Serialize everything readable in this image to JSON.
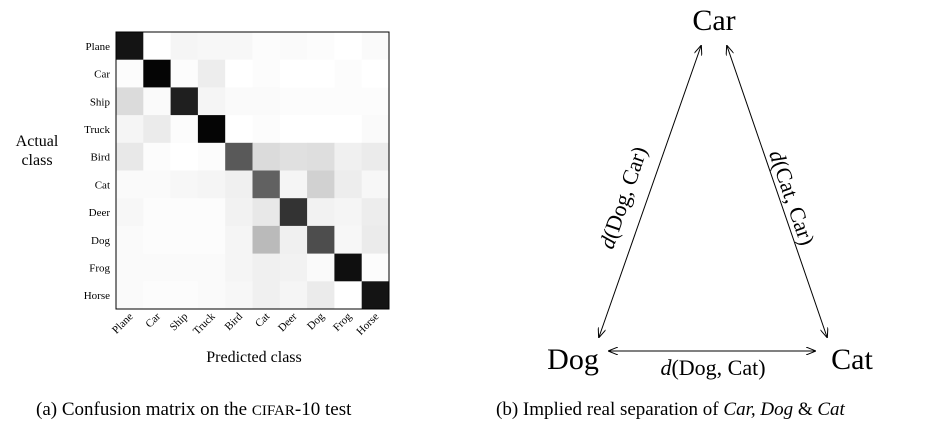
{
  "panel_a": {
    "caption_prefix": "(a) Confusion matrix on the ",
    "caption_dataset": "CIFAR",
    "caption_suffix": "-10 test",
    "row_label_line1": "Actual",
    "row_label_line2": "class",
    "col_label": "Predicted class"
  },
  "chart_data": {
    "type": "heatmap",
    "title": "",
    "xlabel": "Predicted class",
    "ylabel": "Actual class",
    "colormap": "greys",
    "value_range": [
      0,
      1
    ],
    "x_categories": [
      "Plane",
      "Car",
      "Ship",
      "Truck",
      "Bird",
      "Cat",
      "Deer",
      "Dog",
      "Frog",
      "Horse"
    ],
    "y_categories": [
      "Plane",
      "Car",
      "Ship",
      "Truck",
      "Bird",
      "Cat",
      "Deer",
      "Dog",
      "Frog",
      "Horse"
    ],
    "values": [
      [
        0.92,
        0.0,
        0.04,
        0.03,
        0.03,
        0.01,
        0.02,
        0.01,
        0.0,
        0.02
      ],
      [
        0.01,
        0.98,
        0.01,
        0.07,
        0.0,
        0.01,
        0.0,
        0.0,
        0.01,
        0.0
      ],
      [
        0.14,
        0.02,
        0.88,
        0.04,
        0.02,
        0.02,
        0.01,
        0.01,
        0.01,
        0.01
      ],
      [
        0.04,
        0.08,
        0.01,
        0.98,
        0.0,
        0.01,
        0.0,
        0.0,
        0.0,
        0.02
      ],
      [
        0.09,
        0.01,
        0.0,
        0.01,
        0.65,
        0.14,
        0.12,
        0.13,
        0.06,
        0.08
      ],
      [
        0.02,
        0.02,
        0.03,
        0.04,
        0.06,
        0.62,
        0.04,
        0.18,
        0.07,
        0.03
      ],
      [
        0.03,
        0.01,
        0.01,
        0.01,
        0.05,
        0.09,
        0.8,
        0.05,
        0.04,
        0.07
      ],
      [
        0.02,
        0.01,
        0.01,
        0.01,
        0.04,
        0.27,
        0.06,
        0.7,
        0.03,
        0.08
      ],
      [
        0.02,
        0.02,
        0.02,
        0.02,
        0.04,
        0.06,
        0.05,
        0.02,
        0.94,
        0.01
      ],
      [
        0.02,
        0.01,
        0.01,
        0.02,
        0.03,
        0.06,
        0.04,
        0.08,
        0.0,
        0.92
      ]
    ]
  },
  "panel_b": {
    "caption_prefix": "(b) Implied real separation of ",
    "caption_classes": "Car, Dog",
    "caption_amp": " & ",
    "caption_last": "Cat",
    "nodes": {
      "car": "Car",
      "dog": "Dog",
      "cat": "Cat"
    },
    "edges": {
      "dog_car": {
        "func": "d",
        "args": "(Dog, Car)"
      },
      "cat_car": {
        "func": "d",
        "args": "(Cat, Car)"
      },
      "dog_cat": {
        "func": "d",
        "args": "(Dog, Cat)"
      }
    },
    "colors": {
      "arrow": "#000000"
    }
  }
}
